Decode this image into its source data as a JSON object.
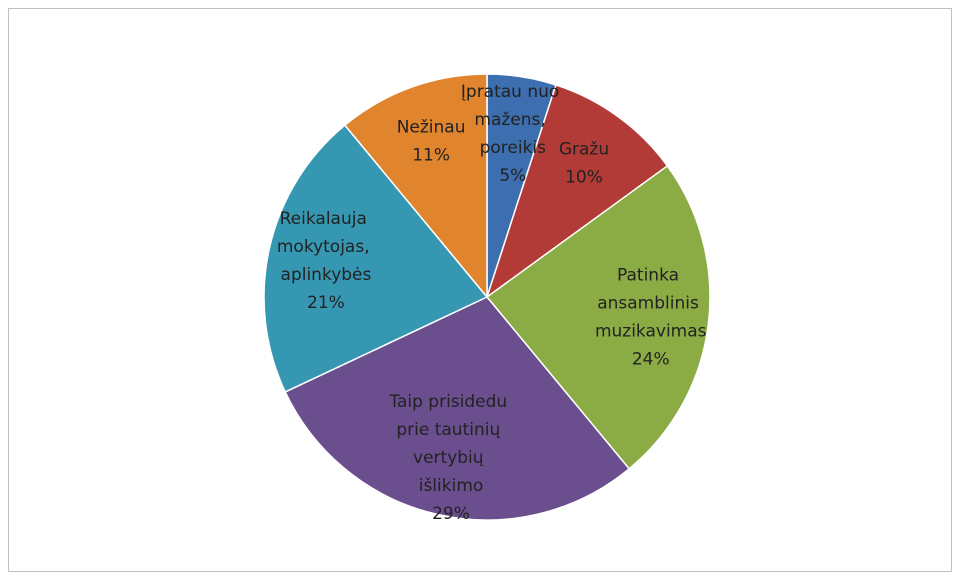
{
  "chart_data": {
    "type": "pie",
    "categories": [
      "Įpratau nuo mažens, poreikis",
      "Gražu",
      "Patinka ansamblinis muzikavimas",
      "Taip prisidedu prie tautinių vertybių išlikimo",
      "Reikalauja mokytojas, aplinkybės",
      "Nežinau"
    ],
    "values": [
      5,
      10,
      24,
      29,
      21,
      11
    ],
    "value_labels": [
      "5%",
      "10%",
      "24%",
      "29%",
      "21%",
      "11%"
    ],
    "colors": [
      "#3d6fb0",
      "#b33b37",
      "#8bab45",
      "#6a4e8d",
      "#3597b1",
      "#e0842d"
    ]
  }
}
